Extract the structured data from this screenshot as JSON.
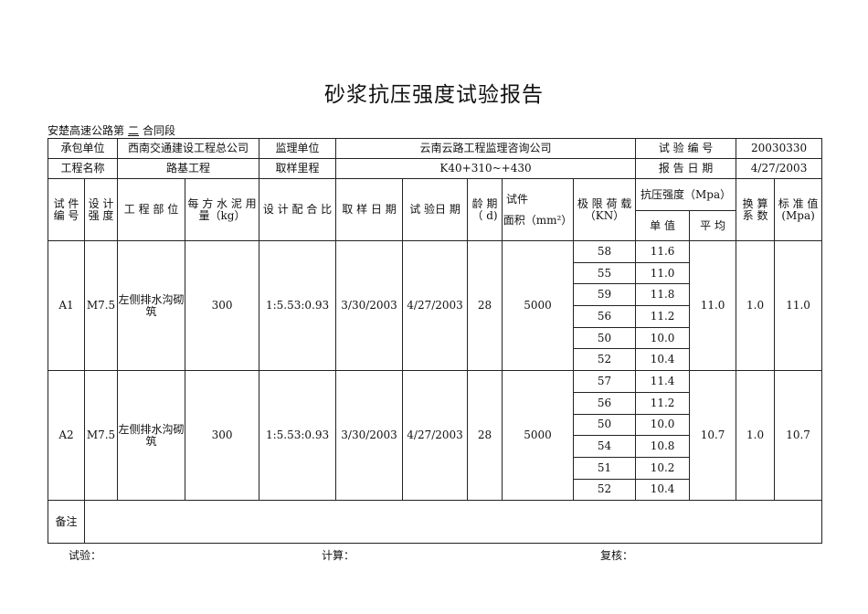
{
  "title": "砂浆抗压强度试验报告",
  "section_prefix": "安楚高速公路第",
  "section_value": "二",
  "section_suffix": "合同段",
  "info": {
    "contractor_label": "承包单位",
    "contractor": "西南交通建设工程总公司",
    "supervisor_label": "监理单位",
    "supervisor": "云南云路工程监理咨询公司",
    "test_no_label": "试 验 编 号",
    "test_no": "20030330",
    "project_label": "工程名称",
    "project": "路基工程",
    "mileage_label": "取样里程",
    "mileage": "K40+310~+430",
    "report_date_label": "报 告 日 期",
    "report_date": "4/27/2003"
  },
  "headers": {
    "specimen_no": "试 件 编 号",
    "design_strength": "设 计 强 度",
    "location": "工 程 部 位",
    "cement": "每 方 水 泥 用 量（kg）",
    "mix": "设 计 配 合 比",
    "sample_date": "取 样 日 期",
    "test_date": "试 验日 期",
    "age": "龄 期（ d)",
    "area_top": "试件",
    "area": "面积（mm²）",
    "load": "极 限 荷 载（KN）",
    "strength": "抗压强度（Mpa）",
    "single": "单 值",
    "avg": "平 均",
    "factor": "换 算 系 数",
    "std": "标 准 值 (Mpa)"
  },
  "rows": [
    {
      "id": "A1",
      "grade": "M7.5",
      "location": "左侧排水沟砌筑",
      "cement": "300",
      "mix": "1:5.53:0.93",
      "sample_date": "3/30/2003",
      "test_date": "4/27/2003",
      "age": "28",
      "area": "5000",
      "loads": [
        "58",
        "55",
        "59",
        "56",
        "50",
        "52"
      ],
      "singles": [
        "11.6",
        "11.0",
        "11.8",
        "11.2",
        "10.0",
        "10.4"
      ],
      "avg": "11.0",
      "factor": "1.0",
      "std": "11.0"
    },
    {
      "id": "A2",
      "grade": "M7.5",
      "location": "左侧排水沟砌筑",
      "cement": "300",
      "mix": "1:5.53:0.93",
      "sample_date": "3/30/2003",
      "test_date": "4/27/2003",
      "age": "28",
      "area": "5000",
      "loads": [
        "57",
        "56",
        "50",
        "54",
        "51",
        "52"
      ],
      "singles": [
        "11.4",
        "11.2",
        "10.0",
        "10.8",
        "10.2",
        "10.4"
      ],
      "avg": "10.7",
      "factor": "1.0",
      "std": "10.7"
    }
  ],
  "remarks_label": "备注",
  "footer": {
    "tester": "试验：",
    "calc": "计算：",
    "review": "复核："
  }
}
